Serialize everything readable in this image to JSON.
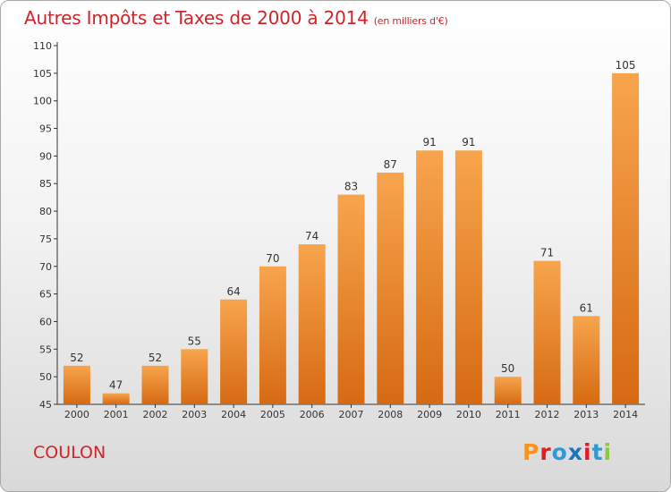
{
  "header": {
    "title": "Autres Impôts et Taxes de 2000 à 2014",
    "subtitle": "(en milliers d'€)"
  },
  "footer": {
    "place": "COULON",
    "logo_text": "Proxiti"
  },
  "colors": {
    "title": "#d2232a",
    "bar_top": "#f7a54d",
    "bar_bottom": "#d66a12",
    "logo": [
      "#f7941d",
      "#e31b23",
      "#2e9ad6",
      "#1b75bc",
      "#e31b23",
      "#2e9ad6",
      "#8dc63f"
    ]
  },
  "chart_data": {
    "type": "bar",
    "title": "Autres Impôts et Taxes de 2000 à 2014",
    "xlabel": "",
    "ylabel": "",
    "categories": [
      "2000",
      "2001",
      "2002",
      "2003",
      "2004",
      "2005",
      "2006",
      "2007",
      "2008",
      "2009",
      "2010",
      "2011",
      "2012",
      "2013",
      "2014"
    ],
    "values": [
      52,
      47,
      52,
      55,
      64,
      70,
      74,
      83,
      87,
      91,
      91,
      50,
      71,
      61,
      105
    ],
    "ylim": [
      45,
      110
    ],
    "yticks": [
      45,
      50,
      55,
      60,
      65,
      70,
      75,
      80,
      85,
      90,
      95,
      100,
      105,
      110
    ],
    "grid": false,
    "legend": "none"
  }
}
